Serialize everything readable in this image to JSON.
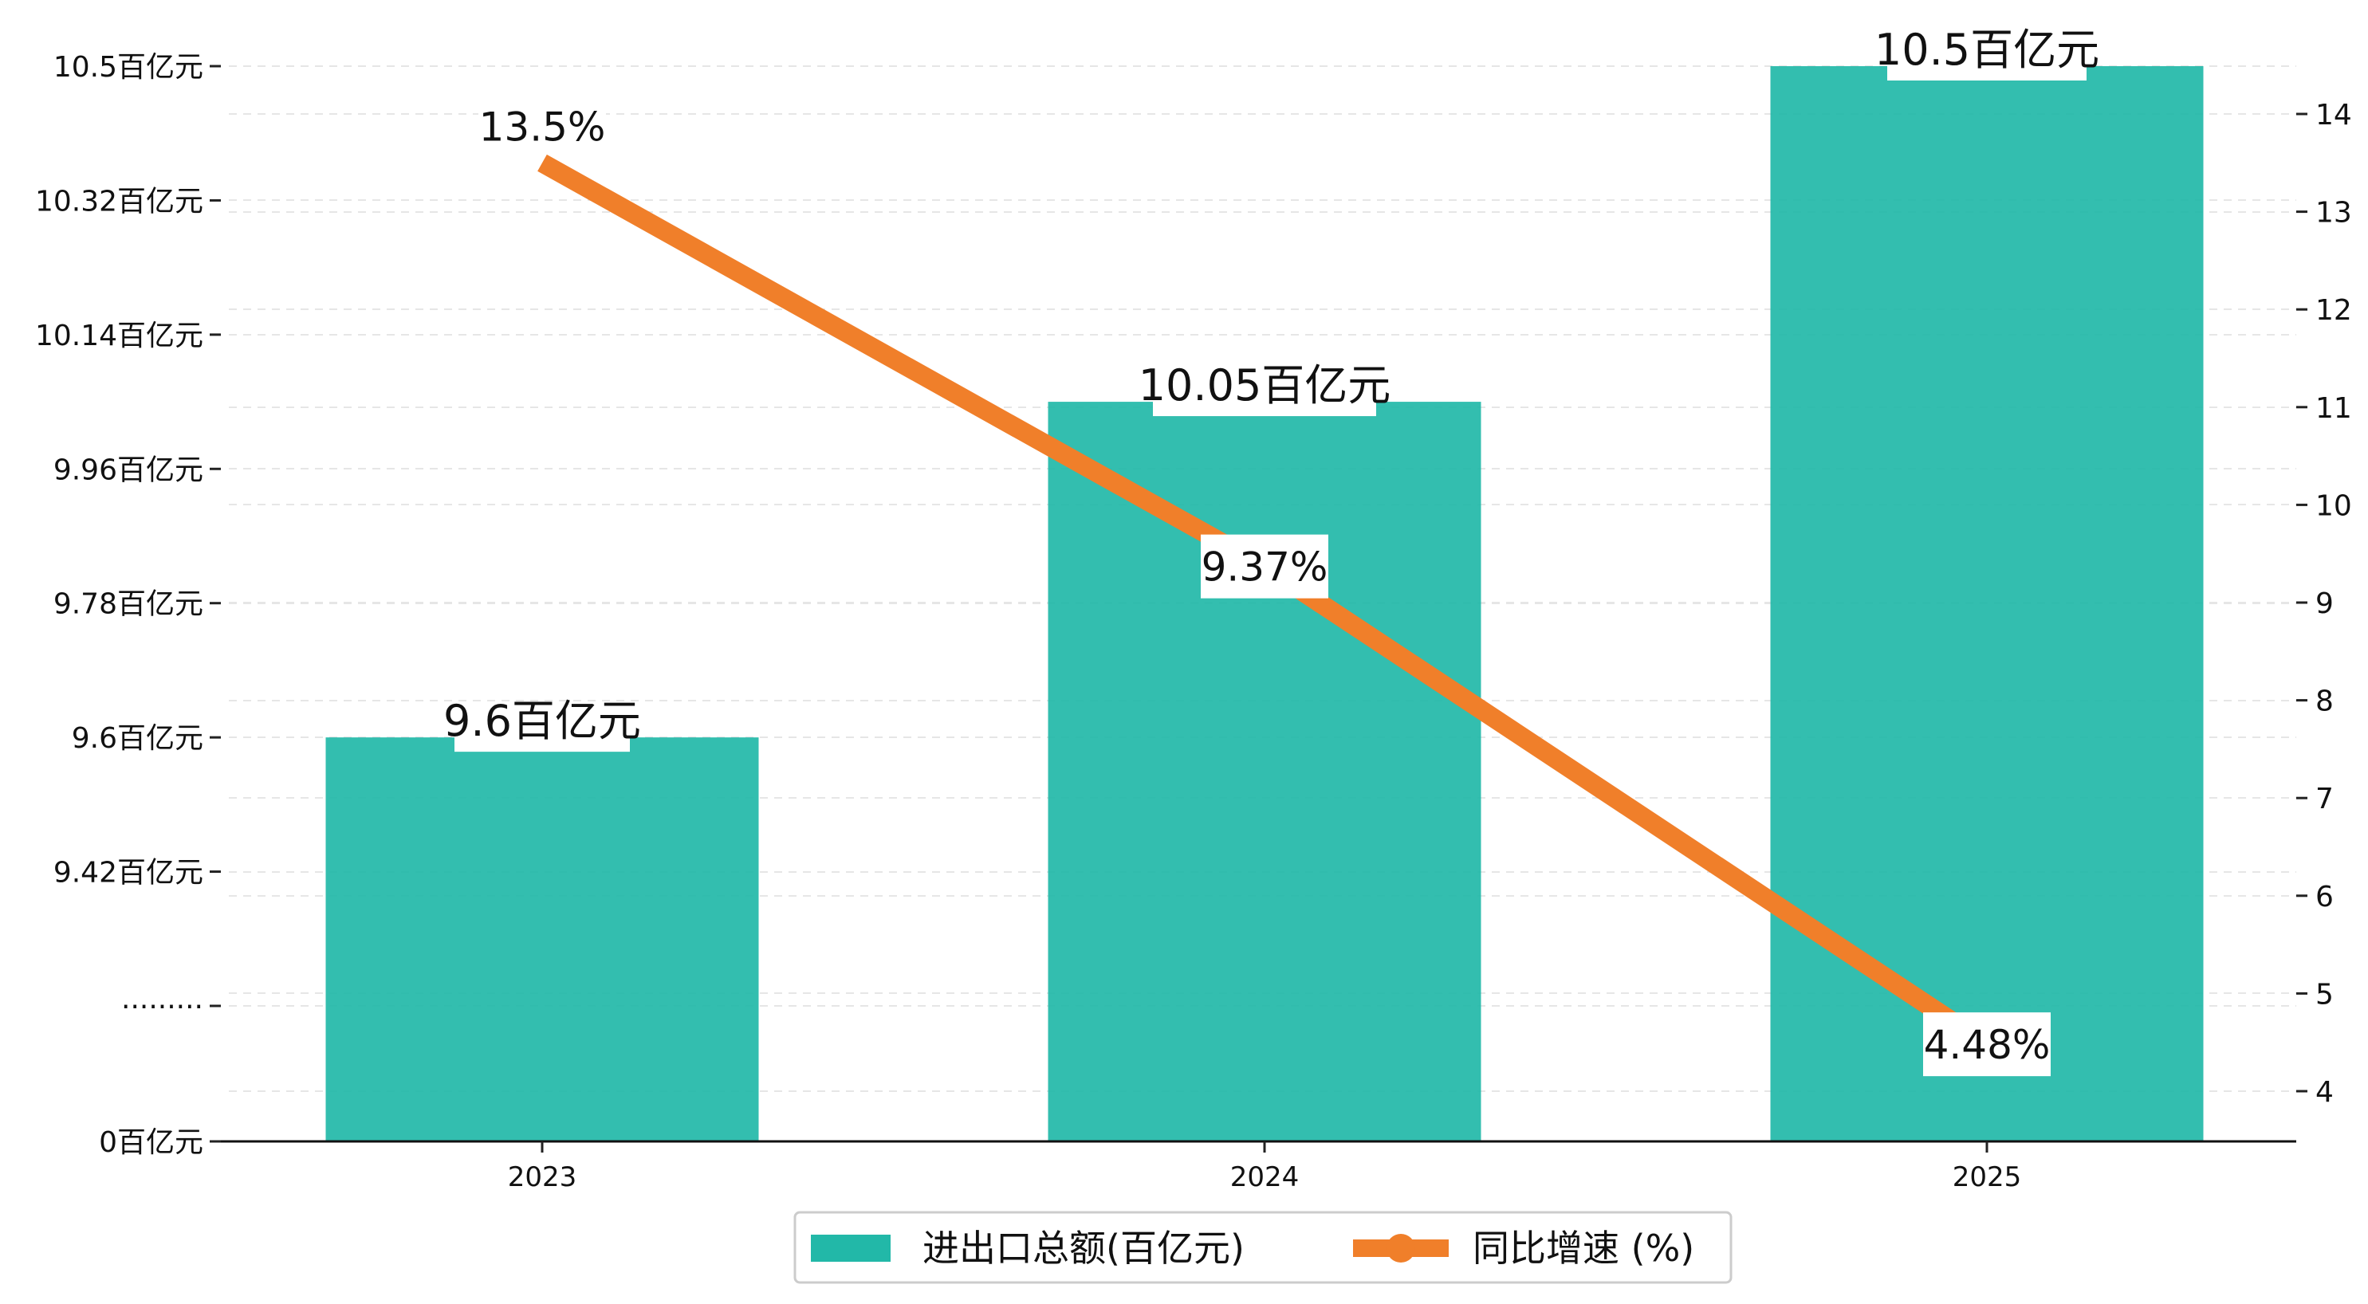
{
  "chart_data": {
    "type": "bar",
    "categories": [
      "2023",
      "2024",
      "2025"
    ],
    "series": [
      {
        "name": "进出口总额(百亿元)",
        "kind": "bar",
        "axis": "left",
        "values": [
          9.6,
          10.05,
          10.5
        ],
        "labels": [
          "9.6百亿元",
          "10.05百亿元",
          "10.5百亿元"
        ],
        "color": "#22b8a8"
      },
      {
        "name": "同比增速 (%)",
        "kind": "line",
        "axis": "right",
        "values": [
          13.5,
          9.37,
          4.48
        ],
        "labels": [
          "13.5%",
          "9.37%",
          "4.48%"
        ],
        "color": "#f07f2a"
      }
    ],
    "left_axis": {
      "broken": true,
      "range": [
        9.24,
        10.5
      ],
      "ticks": [
        {
          "value": 10.5,
          "label": "10.5百亿元"
        },
        {
          "value": 10.32,
          "label": "10.32百亿元"
        },
        {
          "value": 10.14,
          "label": "10.14百亿元"
        },
        {
          "value": 9.96,
          "label": "9.96百亿元"
        },
        {
          "value": 9.78,
          "label": "9.78百亿元"
        },
        {
          "value": 9.6,
          "label": "9.6百亿元"
        },
        {
          "value": 9.42,
          "label": "9.42百亿元"
        },
        {
          "value": 9.24,
          "label": "·········"
        },
        {
          "value": 0,
          "label": "0百亿元"
        }
      ]
    },
    "right_axis": {
      "range": [
        3.48,
        14.5
      ],
      "ticks": [
        4,
        5,
        6,
        7,
        8,
        9,
        10,
        11,
        12,
        13,
        14
      ]
    },
    "grid": true,
    "legend_position": "bottom-center",
    "title": "",
    "xlabel": "",
    "ylabel": ""
  }
}
